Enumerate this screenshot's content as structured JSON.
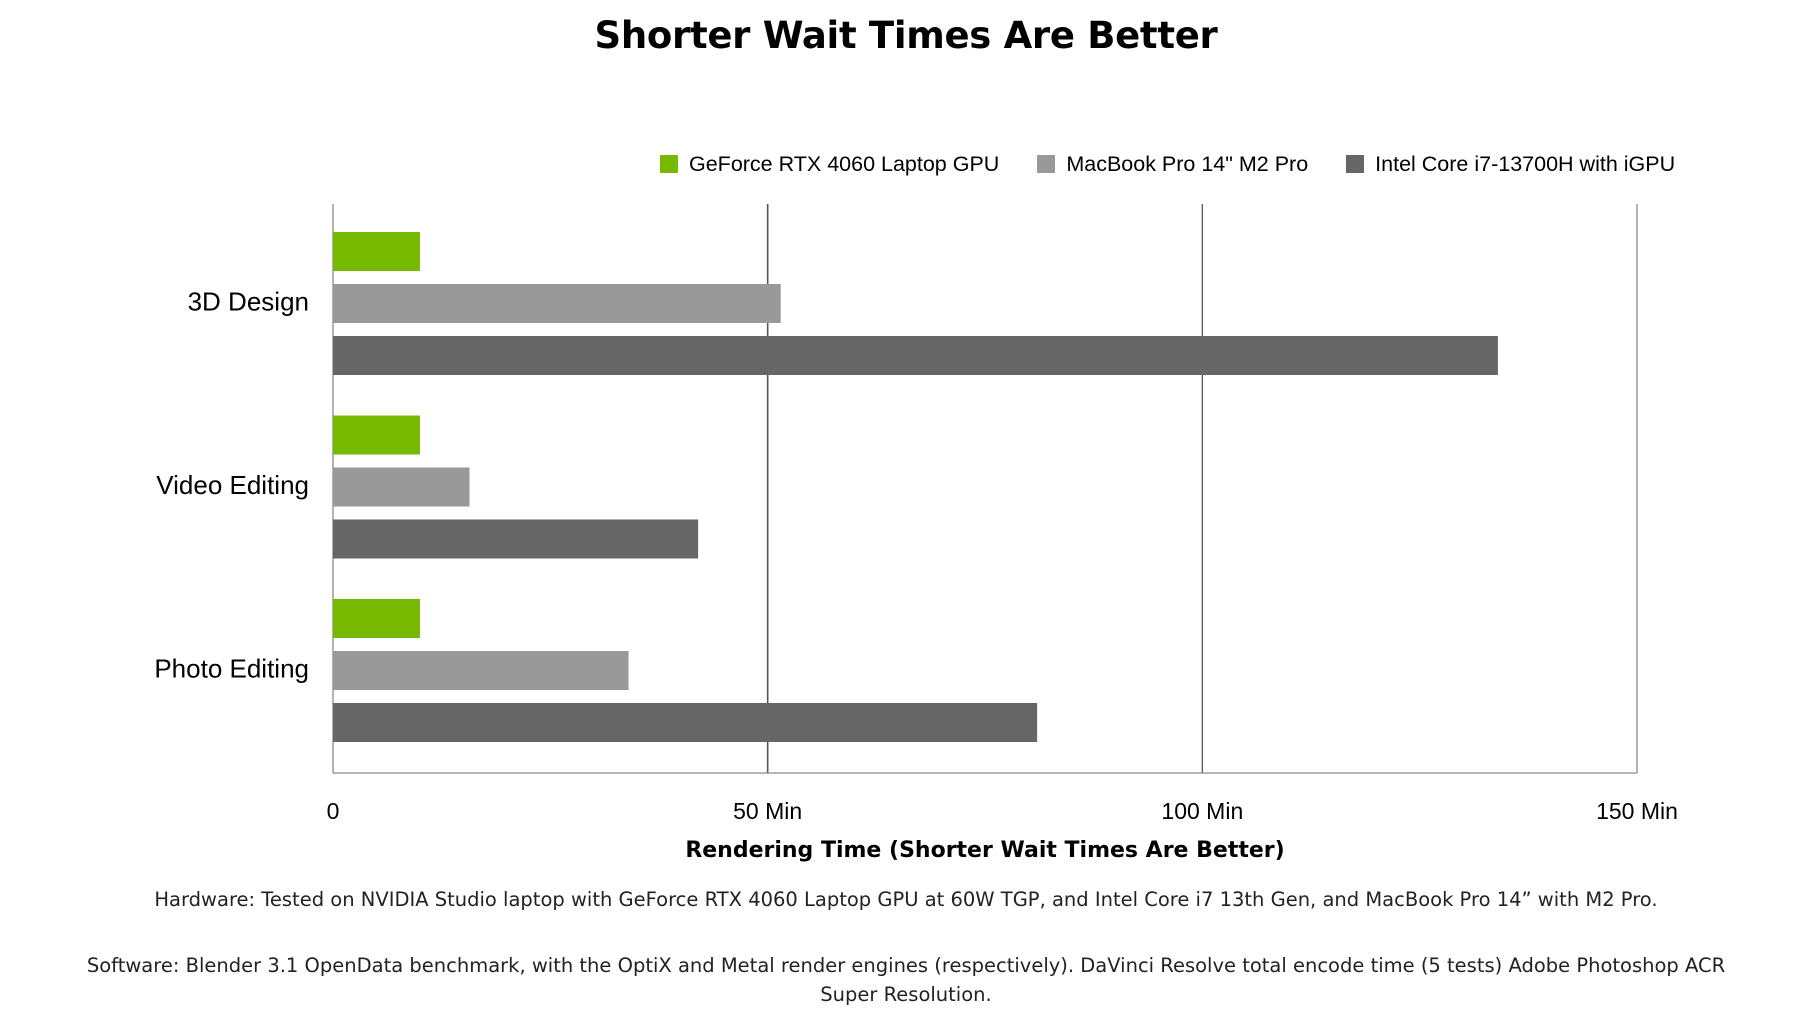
{
  "page": {
    "title": "Shorter Wait Times Are Better",
    "notes": {
      "hardware": "Hardware: Tested on NVIDIA Studio laptop with GeForce RTX 4060 Laptop GPU at 60W TGP, and Intel Core i7 13th Gen, and MacBook Pro 14” with M2 Pro.",
      "software": "Software: Blender 3.1 OpenData benchmark, with the OptiX and Metal render engines (respectively). DaVinci Resolve total encode time (5 tests) Adobe Photoshop ACR Super Resolution."
    }
  },
  "chart_data": {
    "type": "bar",
    "orientation": "horizontal",
    "title": "Shorter Wait Times Are Better",
    "xlabel": "Rendering Time (Shorter Wait Times Are Better)",
    "ylabel": "",
    "categories": [
      "3D Design",
      "Video Editing",
      "Photo Editing"
    ],
    "series": [
      {
        "name": "GeForce RTX 4060 Laptop GPU",
        "color": "#76b900",
        "values": [
          10,
          10,
          10
        ]
      },
      {
        "name": "MacBook Pro 14\" M2 Pro",
        "color": "#999999",
        "values": [
          51.5,
          15.7,
          34
        ]
      },
      {
        "name": "Intel Core i7-13700H with iGPU",
        "color": "#666666",
        "values": [
          134,
          42,
          81
        ]
      }
    ],
    "xlim": [
      0,
      150
    ],
    "xticks": [
      0,
      50,
      100,
      150
    ],
    "xtick_labels": [
      "0",
      "50 Min",
      "100 Min",
      "150 Min"
    ],
    "grid": true,
    "legend_position": "top-right"
  }
}
